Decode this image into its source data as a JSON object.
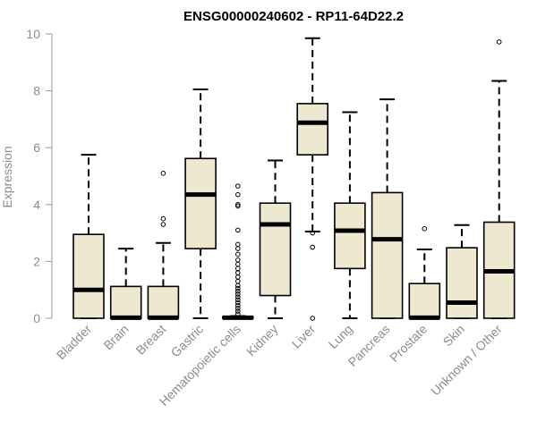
{
  "chart_data": {
    "type": "boxplot",
    "title": "ENSG00000240602 - RP11-64D22.2",
    "xlabel": "",
    "ylabel": "Expression",
    "ylim": [
      0,
      10
    ],
    "yticks": [
      0,
      2,
      4,
      6,
      8,
      10
    ],
    "box_fill": "#efe8d0",
    "line_color": "#000000",
    "categories": [
      "Bladder",
      "Brain",
      "Breast",
      "Gastric",
      "Hematopoietic cells",
      "Kidney",
      "Liver",
      "Lung",
      "Pancreas",
      "Prostate",
      "Skin",
      "Unknown / Other"
    ],
    "boxes": [
      {
        "label": "Bladder",
        "whisker_low": 0,
        "q1": 0,
        "median": 1.0,
        "q3": 2.95,
        "whisker_high": 5.75,
        "outliers": []
      },
      {
        "label": "Brain",
        "whisker_low": 0,
        "q1": 0,
        "median": 0.02,
        "q3": 1.12,
        "whisker_high": 2.45,
        "outliers": []
      },
      {
        "label": "Breast",
        "whisker_low": 0,
        "q1": 0,
        "median": 0.02,
        "q3": 1.12,
        "whisker_high": 2.65,
        "outliers": [
          3.3,
          3.5,
          5.1
        ]
      },
      {
        "label": "Gastric",
        "whisker_low": 0,
        "q1": 2.45,
        "median": 4.35,
        "q3": 5.62,
        "whisker_high": 8.05,
        "outliers": []
      },
      {
        "label": "Hematopoietic cells",
        "whisker_low": 0,
        "q1": 0,
        "median": 0.02,
        "q3": 0.05,
        "whisker_high": 0.08,
        "outliers": [
          0.15,
          0.25,
          0.35,
          0.45,
          0.55,
          0.65,
          0.75,
          0.85,
          0.95,
          1.05,
          1.15,
          1.3,
          1.45,
          1.6,
          1.75,
          1.9,
          2.05,
          2.25,
          2.45,
          2.6,
          3.1,
          3.95,
          4.0,
          4.35,
          4.65
        ]
      },
      {
        "label": "Kidney",
        "whisker_low": 0,
        "q1": 0.8,
        "median": 3.3,
        "q3": 4.05,
        "whisker_high": 5.55,
        "outliers": []
      },
      {
        "label": "Liver",
        "whisker_low": 3.05,
        "q1": 5.75,
        "median": 6.88,
        "q3": 7.55,
        "whisker_high": 9.85,
        "outliers": [
          0.0,
          2.5,
          3.0
        ]
      },
      {
        "label": "Lung",
        "whisker_low": 0,
        "q1": 1.75,
        "median": 3.08,
        "q3": 4.05,
        "whisker_high": 7.25,
        "outliers": []
      },
      {
        "label": "Pancreas",
        "whisker_low": 0,
        "q1": 0,
        "median": 2.78,
        "q3": 4.42,
        "whisker_high": 7.7,
        "outliers": []
      },
      {
        "label": "Prostate",
        "whisker_low": 0,
        "q1": 0,
        "median": 0.02,
        "q3": 1.22,
        "whisker_high": 2.42,
        "outliers": [
          3.15
        ]
      },
      {
        "label": "Skin",
        "whisker_low": 0,
        "q1": 0,
        "median": 0.55,
        "q3": 2.48,
        "whisker_high": 3.28,
        "outliers": []
      },
      {
        "label": "Unknown / Other",
        "whisker_low": 0,
        "q1": 0,
        "median": 1.65,
        "q3": 3.38,
        "whisker_high": 8.35,
        "outliers": [
          9.72
        ]
      }
    ]
  }
}
